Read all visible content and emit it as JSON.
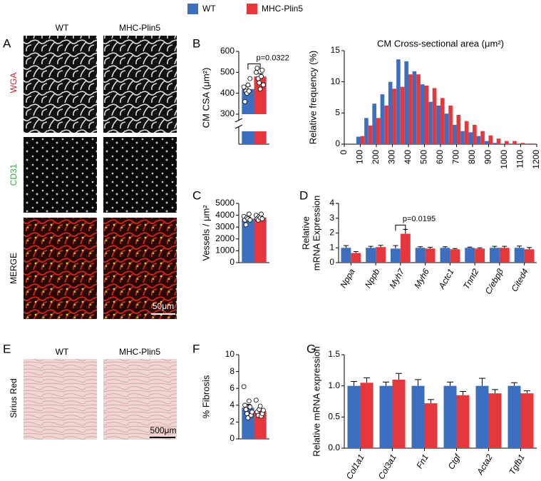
{
  "legend": [
    {
      "name": "WT",
      "color": "#3d6fc1"
    },
    {
      "name": "MHC-Plin5",
      "color": "#e5383d"
    }
  ],
  "images": {
    "A": {
      "label": "A",
      "columns": [
        "WT",
        "MHC-Plin5"
      ],
      "rows": [
        "WGA",
        "CD31",
        "MERGE"
      ],
      "scale_bar": "50μm"
    },
    "E": {
      "label": "E",
      "columns": [
        "WT",
        "MHC-Plin5"
      ],
      "rows": [
        "Sirius Red"
      ],
      "scale_bar": "500μm"
    }
  },
  "chart_data": [
    {
      "type": "bar",
      "label": "B",
      "ylabel": "CM CSA (μm²)",
      "ylim": [
        300,
        600
      ],
      "yticks": [
        300,
        400,
        500,
        600
      ],
      "annotation": "p=0.0322",
      "series": [
        {
          "values": [
            420
          ],
          "errors": [
            14
          ],
          "points": [
            [
              430,
              360,
              410,
              400,
              440,
              410,
              470
            ]
          ]
        },
        {
          "values": [
            480
          ],
          "errors": [
            14
          ],
          "points": [
            [
              500,
              520,
              470,
              450,
              420,
              480,
              510,
              440
            ]
          ]
        }
      ]
    },
    {
      "type": "histogram",
      "title": "CM Cross-sectional area (μm²)",
      "ylabel": "Relative frequency (%)",
      "xlim": [
        0,
        1200
      ],
      "xticks": [
        0,
        100,
        200,
        300,
        400,
        500,
        600,
        700,
        800,
        900,
        1000,
        1100,
        1200
      ],
      "ylim": [
        0,
        15
      ],
      "yticks": [
        0,
        5,
        10,
        15
      ],
      "bins": [
        75,
        125,
        175,
        225,
        275,
        325,
        375,
        425,
        475,
        525,
        575,
        625,
        675,
        725,
        775,
        825,
        875,
        925,
        975,
        1025,
        1075,
        1125,
        1175
      ],
      "series": [
        {
          "values": [
            1.2,
            4.2,
            6.5,
            8.0,
            10.0,
            13.6,
            13.3,
            11.7,
            9.6,
            6.8,
            6.2,
            4.9,
            3.1,
            2.1,
            1.9,
            1.3,
            0.5,
            0.2,
            0.1,
            0,
            0,
            0
          ]
        },
        {
          "values": [
            1.3,
            3.0,
            4.2,
            6.2,
            8.9,
            9.2,
            11.2,
            11.2,
            9.4,
            9.0,
            7.4,
            6.2,
            4.7,
            3.7,
            3.1,
            2.1,
            1.4,
            0.9,
            0.5,
            0.5,
            0.2,
            0.1
          ]
        }
      ]
    },
    {
      "type": "bar",
      "label": "C",
      "ylabel": "Vessels / μm²",
      "ylim": [
        0,
        5000
      ],
      "yticks": [
        0,
        1000,
        2000,
        3000,
        4000,
        5000
      ],
      "series": [
        {
          "values": [
            3700
          ],
          "errors": [
            130
          ],
          "points": [
            [
              3900,
              3600,
              3200,
              3800,
              3700,
              4100,
              3600
            ]
          ]
        },
        {
          "values": [
            3800
          ],
          "errors": [
            80
          ],
          "points": [
            [
              4000,
              3700,
              3600,
              3900,
              3800,
              4100,
              3700
            ]
          ]
        }
      ]
    },
    {
      "type": "bar",
      "label": "D",
      "ylabel": [
        "Relative",
        "mRNA Expression"
      ],
      "ylim": [
        0,
        4
      ],
      "yticks": [
        0,
        1,
        2,
        3,
        4
      ],
      "annotation": "p=0.0195",
      "categories": [
        "Nppa",
        "Nppb",
        "Myh7",
        "Myh6",
        "Actc1",
        "Tnnt2",
        "C/ebpβ",
        "Cited4"
      ],
      "series": [
        {
          "values": [
            1.0,
            1.0,
            0.95,
            1.0,
            1.0,
            1.0,
            1.0,
            1.0
          ],
          "errors": [
            0.15,
            0.1,
            0.2,
            0.07,
            0.07,
            0.05,
            0.1,
            0.12
          ]
        },
        {
          "values": [
            0.65,
            1.05,
            1.95,
            0.95,
            0.9,
            0.95,
            1.0,
            0.9
          ],
          "errors": [
            0.1,
            0.12,
            0.3,
            0.08,
            0.05,
            0.05,
            0.1,
            0.12
          ]
        }
      ]
    },
    {
      "type": "bar",
      "label": "F",
      "ylabel": "% Fibrosis",
      "ylim": [
        0,
        10
      ],
      "yticks": [
        0,
        2,
        4,
        6,
        8,
        10
      ],
      "series": [
        {
          "values": [
            3.7
          ],
          "errors": [
            0.4
          ],
          "points": [
            [
              6.2,
              4.0,
              3.5,
              3.0,
              2.5,
              4.5,
              3.8,
              2.8,
              3.2
            ]
          ]
        },
        {
          "values": [
            3.3
          ],
          "errors": [
            0.25
          ],
          "points": [
            [
              4.6,
              3.2,
              2.8,
              3.5,
              3.9,
              2.7,
              3.0,
              3.4
            ]
          ]
        }
      ]
    },
    {
      "type": "bar",
      "label": "G",
      "ylabel": "Relative mRNA expression",
      "ylim": [
        0,
        1.5
      ],
      "yticks": [
        {
          "value": 0,
          "label": "0.0"
        },
        0.5,
        {
          "value": 1,
          "label": "1.0"
        },
        1.5
      ],
      "categories": [
        "Col1a1",
        "Col3a1",
        "Fn1",
        "Ctgf",
        "Acta2",
        "Tgfb1"
      ],
      "series": [
        {
          "values": [
            1.0,
            1.0,
            1.0,
            1.0,
            1.0,
            1.0
          ],
          "errors": [
            0.07,
            0.06,
            0.1,
            0.06,
            0.12,
            0.05
          ]
        },
        {
          "values": [
            1.05,
            1.1,
            0.72,
            0.85,
            0.88,
            0.88
          ],
          "errors": [
            0.08,
            0.1,
            0.06,
            0.06,
            0.06,
            0.04
          ]
        }
      ]
    }
  ]
}
